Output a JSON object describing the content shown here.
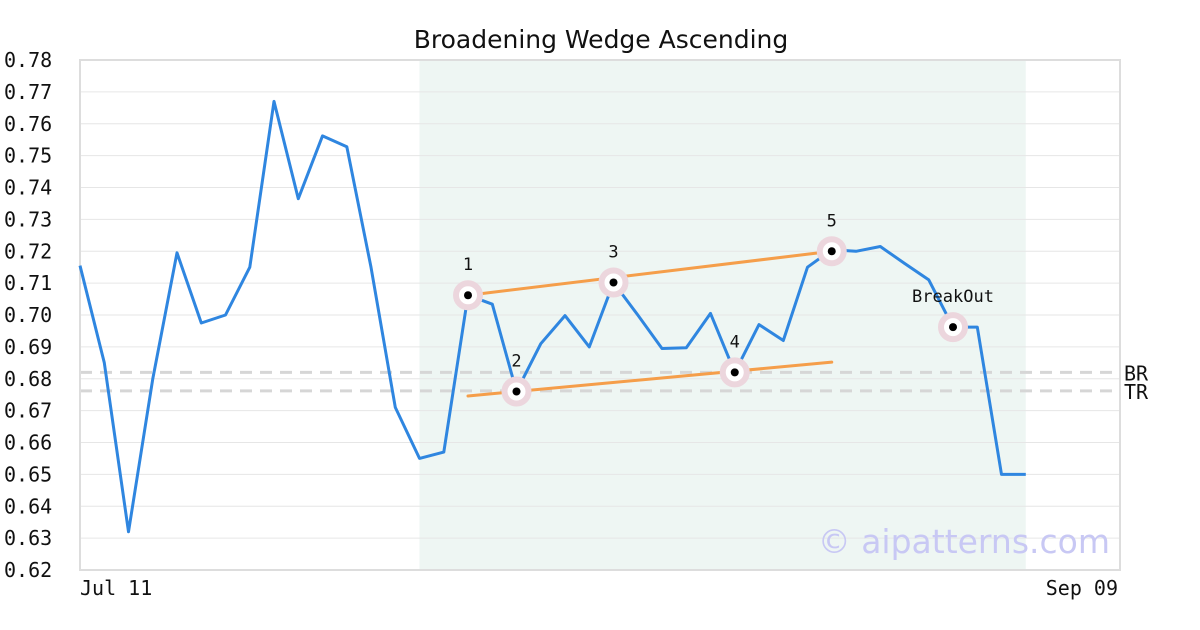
{
  "chart_data": {
    "type": "line",
    "title": "Broadening Wedge Ascending",
    "xlabel": "",
    "ylabel": "",
    "ylim": [
      0.62,
      0.78
    ],
    "y_ticks": [
      "0.78",
      "0.77",
      "0.76",
      "0.75",
      "0.74",
      "0.73",
      "0.72",
      "0.71",
      "0.70",
      "0.69",
      "0.68",
      "0.67",
      "0.66",
      "0.65",
      "0.64",
      "0.63",
      "0.62"
    ],
    "x_ticks": [
      "Jul 11",
      "Sep 09"
    ],
    "grid": true,
    "series": [
      {
        "color": "#2f86e0",
        "values": [
          0.7155,
          0.685,
          0.632,
          0.68,
          0.7195,
          0.6975,
          0.7,
          0.715,
          0.767,
          0.7365,
          0.7562,
          0.7528,
          0.715,
          0.671,
          0.655,
          0.657,
          0.7062,
          0.7034,
          0.676,
          0.691,
          0.6998,
          0.69,
          0.7102,
          0.7,
          0.6895,
          0.6897,
          0.7005,
          0.682,
          0.697,
          0.692,
          0.715,
          0.7205,
          0.72,
          0.7215,
          0.7162,
          0.711,
          0.6962,
          0.6962,
          0.65,
          0.65
        ]
      }
    ],
    "pattern_region": {
      "start_index": 14,
      "end_index": 39,
      "color": "#eef6f3"
    },
    "trendlines": [
      {
        "name": "upper",
        "color": "#f59e4a",
        "from": [
          16,
          0.7062
        ],
        "to": [
          31,
          0.72
        ]
      },
      {
        "name": "lower",
        "color": "#f59e4a",
        "from": [
          16,
          0.6746
        ],
        "to": [
          31,
          0.6852
        ]
      }
    ],
    "pattern_points": [
      {
        "label": "1",
        "index": 16,
        "value": 0.7062,
        "label_pos": "above"
      },
      {
        "label": "2",
        "index": 18,
        "value": 0.676,
        "label_pos": "above"
      },
      {
        "label": "3",
        "index": 22,
        "value": 0.7102,
        "label_pos": "above"
      },
      {
        "label": "4",
        "index": 27,
        "value": 0.682,
        "label_pos": "above"
      },
      {
        "label": "5",
        "index": 31,
        "value": 0.72,
        "label_pos": "above"
      },
      {
        "label": "BreakOut",
        "index": 36,
        "value": 0.6962,
        "label_pos": "above"
      }
    ],
    "levels": [
      {
        "label": "BR",
        "value": 0.682
      },
      {
        "label": "TR",
        "value": 0.6762
      }
    ],
    "watermark": "© aipatterns.com"
  }
}
